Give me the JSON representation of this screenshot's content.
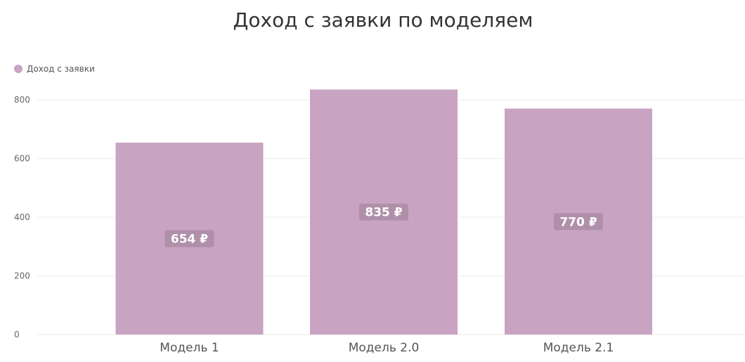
{
  "chart_data": {
    "type": "bar",
    "title": "Доход с заявки по моделяем",
    "categories": [
      "Модель 1",
      "Модель 2.0",
      "Модель 2.1"
    ],
    "series": [
      {
        "name": "Доход с заявки",
        "values": [
          654,
          835,
          770
        ]
      }
    ],
    "value_labels": [
      "654 ₽",
      "835 ₽",
      "770 ₽"
    ],
    "yticks": [
      "0",
      "200",
      "400",
      "600",
      "800"
    ],
    "ylim": [
      0,
      800
    ],
    "grid": true,
    "legend_position": "top-left",
    "colors": {
      "bar": "#c9a3c2",
      "label_bg": "#b08fa9",
      "grid": "#ececec"
    }
  }
}
